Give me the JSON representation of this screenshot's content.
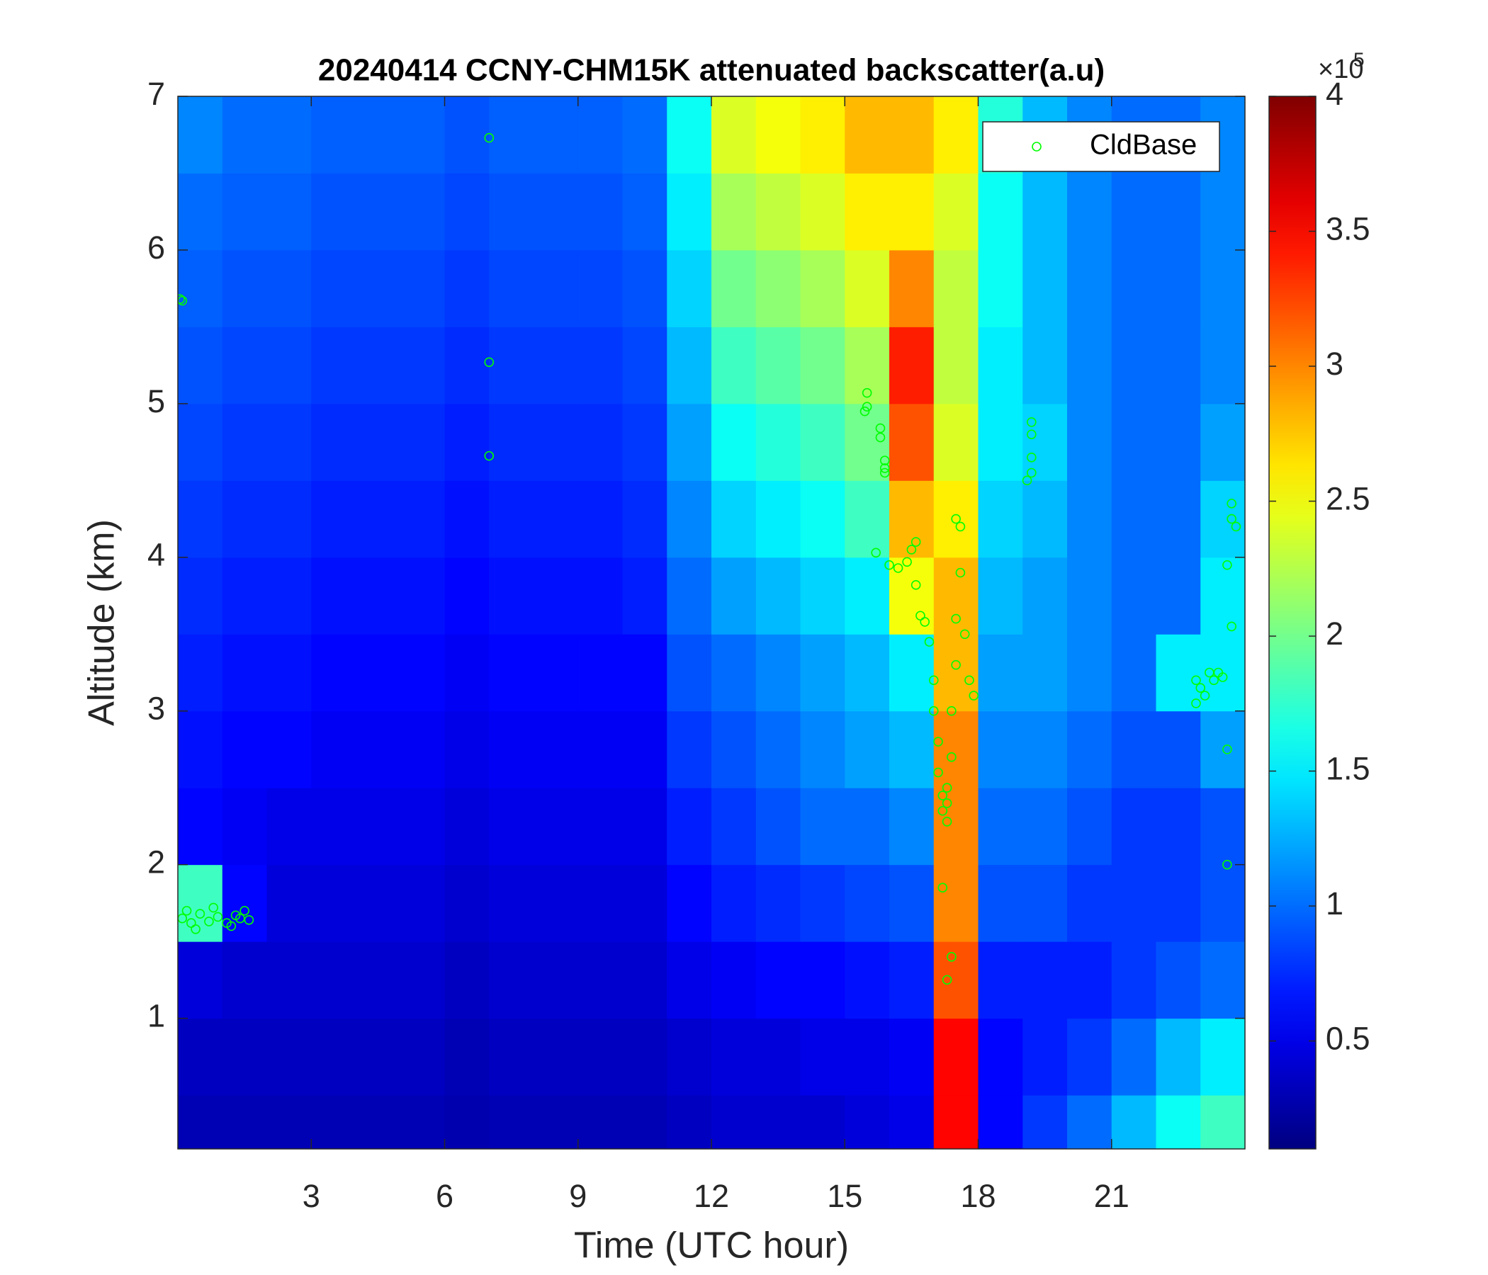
{
  "chart_data": {
    "type": "heatmap",
    "title": "20240414 CCNY-CHM15K attenuated backscatter(a.u)",
    "x_label": "Time (UTC hour)",
    "y_label": "Altitude (km)",
    "xlim": [
      0,
      24
    ],
    "ylim": [
      0.15,
      7
    ],
    "xticks": [
      3,
      6,
      9,
      12,
      15,
      18,
      21
    ],
    "yticks": [
      1,
      2,
      3,
      4,
      5,
      6,
      7
    ],
    "colormap": "jet",
    "zlim": [
      0.1,
      4
    ],
    "zticks": [
      0.5,
      1,
      1.5,
      2,
      2.5,
      3,
      3.5,
      4
    ],
    "colorbar_scale": "×10",
    "colorbar_scale_exponent": "5",
    "legend_location": "northeast",
    "x_edges": [
      0,
      1,
      2,
      3,
      4,
      5,
      6,
      7,
      8,
      9,
      10,
      11,
      12,
      13,
      14,
      15,
      16,
      17,
      18,
      19,
      20,
      21,
      22,
      23,
      24
    ],
    "y_edges": [
      0.15,
      0.5,
      1,
      1.5,
      2,
      2.5,
      3,
      3.5,
      4,
      4.5,
      5,
      5.5,
      6,
      6.5,
      7
    ],
    "z": [
      [
        0.3,
        0.3,
        0.3,
        0.3,
        0.3,
        0.3,
        0.28,
        0.3,
        0.3,
        0.3,
        0.3,
        0.35,
        0.4,
        0.4,
        0.4,
        0.45,
        0.5,
        3.5,
        0.6,
        0.8,
        1.0,
        1.3,
        1.6,
        1.8
      ],
      [
        0.35,
        0.35,
        0.35,
        0.35,
        0.35,
        0.35,
        0.3,
        0.35,
        0.35,
        0.35,
        0.35,
        0.4,
        0.45,
        0.45,
        0.5,
        0.5,
        0.55,
        3.5,
        0.6,
        0.7,
        0.8,
        1.0,
        1.3,
        1.5
      ],
      [
        0.45,
        0.4,
        0.4,
        0.4,
        0.4,
        0.4,
        0.35,
        0.4,
        0.4,
        0.4,
        0.4,
        0.5,
        0.55,
        0.6,
        0.6,
        0.65,
        0.7,
        3.2,
        0.7,
        0.7,
        0.7,
        0.8,
        0.9,
        1.0
      ],
      [
        1.8,
        0.6,
        0.45,
        0.45,
        0.45,
        0.45,
        0.4,
        0.45,
        0.45,
        0.45,
        0.45,
        0.6,
        0.7,
        0.75,
        0.8,
        0.85,
        0.9,
        3.0,
        0.9,
        0.9,
        0.8,
        0.8,
        0.8,
        0.9
      ],
      [
        0.6,
        0.55,
        0.5,
        0.5,
        0.5,
        0.5,
        0.45,
        0.5,
        0.5,
        0.5,
        0.5,
        0.7,
        0.8,
        0.9,
        1.0,
        1.0,
        1.1,
        3.0,
        1.0,
        1.0,
        0.9,
        0.8,
        0.8,
        0.9
      ],
      [
        0.65,
        0.6,
        0.6,
        0.55,
        0.55,
        0.55,
        0.5,
        0.55,
        0.55,
        0.55,
        0.55,
        0.8,
        0.9,
        1.0,
        1.1,
        1.2,
        1.3,
        3.0,
        1.1,
        1.1,
        1.0,
        0.9,
        0.9,
        1.2
      ],
      [
        0.7,
        0.65,
        0.65,
        0.6,
        0.6,
        0.6,
        0.55,
        0.6,
        0.6,
        0.6,
        0.6,
        0.9,
        1.0,
        1.1,
        1.2,
        1.3,
        1.5,
        2.8,
        1.2,
        1.2,
        1.1,
        1.0,
        1.5,
        1.5
      ],
      [
        0.75,
        0.7,
        0.7,
        0.65,
        0.65,
        0.65,
        0.6,
        0.65,
        0.65,
        0.65,
        0.7,
        1.0,
        1.2,
        1.3,
        1.4,
        1.5,
        2.5,
        2.8,
        1.3,
        1.2,
        1.1,
        1.0,
        1.0,
        1.5
      ],
      [
        0.8,
        0.75,
        0.75,
        0.7,
        0.7,
        0.7,
        0.65,
        0.7,
        0.7,
        0.7,
        0.75,
        1.1,
        1.4,
        1.5,
        1.6,
        1.8,
        2.8,
        2.6,
        1.4,
        1.3,
        1.1,
        1.0,
        1.0,
        1.4
      ],
      [
        0.85,
        0.8,
        0.8,
        0.75,
        0.75,
        0.75,
        0.7,
        0.75,
        0.75,
        0.75,
        0.8,
        1.2,
        1.6,
        1.7,
        1.8,
        2.0,
        3.2,
        2.4,
        1.5,
        1.4,
        1.1,
        1.0,
        1.0,
        1.2
      ],
      [
        0.9,
        0.85,
        0.85,
        0.8,
        0.8,
        0.8,
        0.75,
        0.8,
        0.8,
        0.8,
        0.85,
        1.3,
        1.8,
        1.9,
        2.0,
        2.2,
        3.4,
        2.3,
        1.5,
        1.3,
        1.1,
        1.0,
        1.0,
        1.1
      ],
      [
        0.95,
        0.9,
        0.9,
        0.85,
        0.85,
        0.85,
        0.8,
        0.85,
        0.85,
        0.85,
        0.9,
        1.4,
        2.0,
        2.1,
        2.2,
        2.4,
        3.0,
        2.3,
        1.6,
        1.3,
        1.1,
        1.0,
        1.0,
        1.1
      ],
      [
        1.0,
        0.95,
        0.95,
        0.9,
        0.9,
        0.9,
        0.85,
        0.9,
        0.9,
        0.9,
        0.95,
        1.5,
        2.2,
        2.3,
        2.4,
        2.6,
        2.6,
        2.4,
        1.6,
        1.3,
        1.1,
        1.0,
        1.0,
        1.1
      ],
      [
        1.1,
        1.0,
        1.0,
        0.95,
        0.95,
        0.95,
        0.9,
        0.95,
        0.95,
        0.95,
        1.0,
        1.6,
        2.4,
        2.5,
        2.6,
        2.8,
        2.8,
        2.6,
        1.7,
        1.3,
        1.1,
        1.0,
        1.0,
        1.1
      ]
    ],
    "series": [
      {
        "name": "CldBase",
        "type": "scatter",
        "color": "#00ff00",
        "x": [
          0.1,
          0.3,
          0.5,
          0.7,
          0.9,
          1.1,
          1.3,
          1.5,
          1.6,
          0.2,
          0.4,
          0.8,
          1.2,
          1.4,
          0.05,
          0.1,
          7.0,
          7.0,
          7.0,
          15.5,
          15.5,
          15.45,
          15.8,
          15.8,
          15.9,
          15.9,
          15.9,
          15.7,
          16.0,
          16.2,
          16.4,
          16.5,
          16.6,
          16.6,
          16.7,
          16.8,
          16.9,
          17.0,
          17.0,
          17.1,
          17.1,
          17.2,
          17.2,
          17.3,
          17.3,
          17.3,
          17.2,
          17.4,
          17.3,
          17.4,
          17.4,
          17.5,
          17.5,
          17.6,
          17.6,
          17.5,
          17.7,
          17.8,
          17.9,
          19.2,
          19.2,
          19.2,
          19.2,
          19.1,
          22.9,
          23.0,
          23.1,
          23.2,
          23.3,
          23.4,
          23.5,
          22.9,
          23.7,
          23.7,
          23.8,
          23.6,
          23.7,
          23.6,
          23.6
        ],
        "y": [
          1.65,
          1.62,
          1.68,
          1.63,
          1.66,
          1.62,
          1.67,
          1.7,
          1.64,
          1.7,
          1.58,
          1.72,
          1.6,
          1.65,
          5.68,
          5.67,
          6.73,
          5.27,
          4.66,
          5.07,
          4.98,
          4.95,
          4.84,
          4.78,
          4.63,
          4.58,
          4.55,
          4.03,
          3.95,
          3.93,
          3.97,
          4.05,
          4.1,
          3.82,
          3.62,
          3.58,
          3.45,
          3.2,
          3.0,
          2.8,
          2.6,
          2.45,
          2.35,
          2.4,
          2.5,
          2.28,
          1.85,
          1.4,
          1.25,
          2.7,
          3.0,
          3.3,
          3.6,
          3.9,
          4.2,
          4.25,
          3.5,
          3.2,
          3.1,
          4.88,
          4.8,
          4.65,
          4.55,
          4.5,
          3.2,
          3.15,
          3.1,
          3.25,
          3.2,
          3.25,
          3.22,
          3.05,
          4.35,
          4.25,
          4.2,
          3.95,
          3.55,
          2.75,
          2.0
        ]
      }
    ]
  }
}
